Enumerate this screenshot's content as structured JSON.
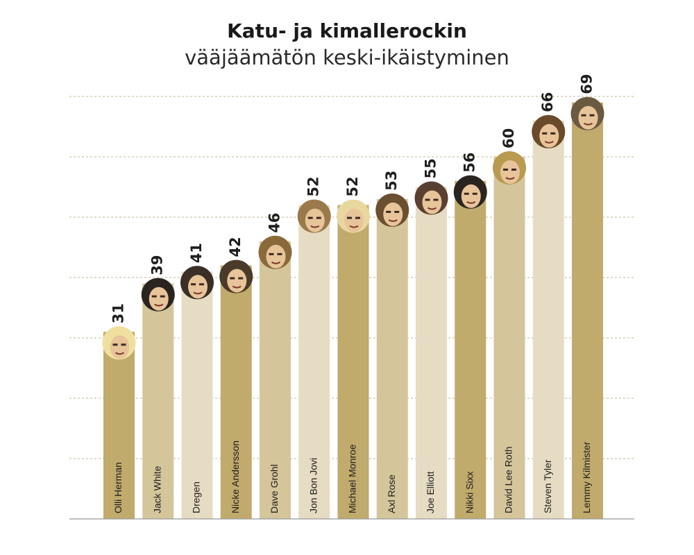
{
  "chart_data": {
    "type": "bar",
    "title": "Katu- ja kimallerockin",
    "subtitle": "vääjäämätön keski-ikäistyminen",
    "xlabel": "",
    "ylabel": "",
    "ylim": [
      0,
      70
    ],
    "grid": true,
    "categories": [
      "Olli Herman",
      "Jack White",
      "Dregen",
      "Nicke Andersson",
      "Dave Grohl",
      "Jon Bon Jovi",
      "Michael Monroe",
      "Axl Rose",
      "Joe Elliott",
      "Nikki Sixx",
      "David Lee Roth",
      "Steven Tyler",
      "Lemmy Kilmister"
    ],
    "values": [
      31,
      39,
      41,
      42,
      46,
      52,
      52,
      53,
      55,
      56,
      60,
      66,
      69
    ],
    "colors": {
      "bar_dark": "#c0aa6c",
      "bar_medium": "#d5c59b",
      "bar_light": "#e6dcc3",
      "grid": "#cdc3a4",
      "axis": "#999999"
    },
    "bar_shades": [
      "dark",
      "medium",
      "light",
      "dark",
      "medium",
      "light",
      "dark",
      "medium",
      "light",
      "dark",
      "medium",
      "light",
      "dark"
    ],
    "hair_colors": [
      "#efe0a0",
      "#2a2420",
      "#3a2e26",
      "#4a3a2a",
      "#8a6a3a",
      "#9a7a4a",
      "#e8d8a0",
      "#6a5030",
      "#5a4030",
      "#2a2420",
      "#b89a50",
      "#6a4a2a",
      "#6a5a40"
    ],
    "face_color": "#e8c49a",
    "face_icon": "portrait-photo"
  }
}
